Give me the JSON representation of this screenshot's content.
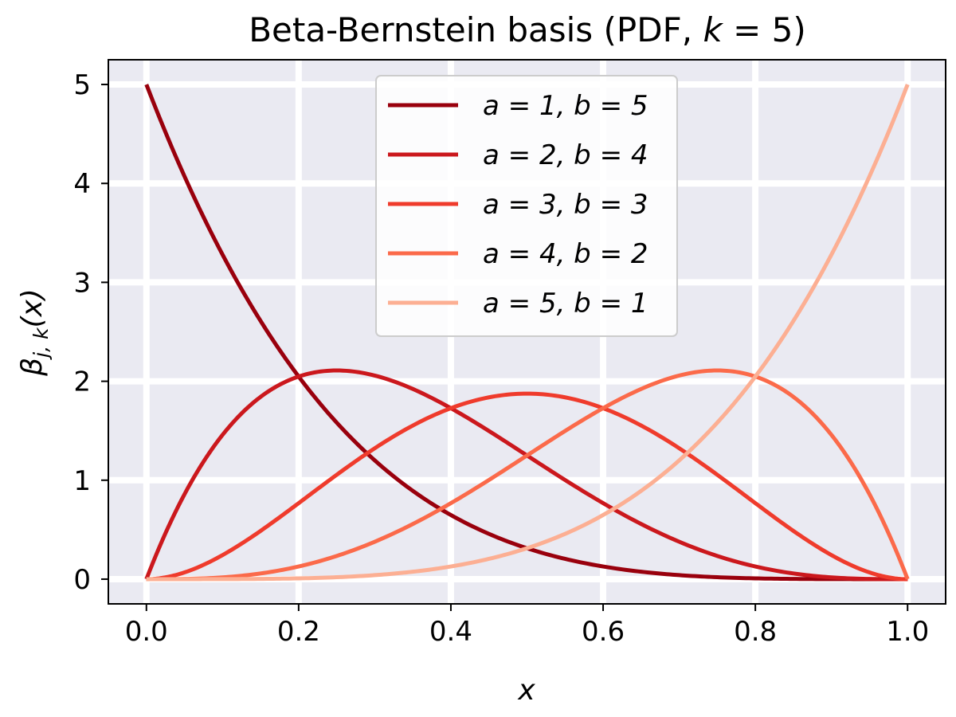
{
  "chart_data": {
    "type": "line",
    "title": "Beta-Bernstein basis (PDF, k = 5)",
    "title_parts": {
      "prefix": "Beta-Bernstein basis (PDF, ",
      "k": "k",
      "eq": " = 5",
      "suffix": ")"
    },
    "xlabel": "x",
    "ylabel_parts": {
      "beta": "β",
      "sub": "j, k",
      "arg": "(x)"
    },
    "xlim": [
      -0.05,
      1.05
    ],
    "ylim": [
      -0.25,
      5.25
    ],
    "xticks": [
      0.0,
      0.2,
      0.4,
      0.6,
      0.8,
      1.0
    ],
    "xtick_labels": [
      "0.0",
      "0.2",
      "0.4",
      "0.6",
      "0.8",
      "1.0"
    ],
    "yticks": [
      0,
      1,
      2,
      3,
      4,
      5
    ],
    "ytick_labels": [
      "0",
      "1",
      "2",
      "3",
      "4",
      "5"
    ],
    "grid": true,
    "legend_position": "top-center",
    "background_color": "#eaeaf2",
    "series": [
      {
        "name": "a = 1, b = 5",
        "a": 1,
        "b": 5,
        "color": "#99000d",
        "x": [
          0,
          0.1,
          0.2,
          0.3,
          0.4,
          0.5,
          0.6,
          0.7,
          0.8,
          0.9,
          1.0
        ],
        "y": [
          5.0,
          3.28,
          2.05,
          1.2,
          0.65,
          0.31,
          0.13,
          0.04,
          0.01,
          0.0,
          0.0
        ]
      },
      {
        "name": "a = 2, b = 4",
        "a": 2,
        "b": 4,
        "color": "#cb181d",
        "x": [
          0,
          0.1,
          0.2,
          0.25,
          0.3,
          0.4,
          0.5,
          0.6,
          0.7,
          0.8,
          0.9,
          1.0
        ],
        "y": [
          0.0,
          1.46,
          2.05,
          2.11,
          2.06,
          1.73,
          1.25,
          0.77,
          0.38,
          0.13,
          0.02,
          0.0
        ]
      },
      {
        "name": "a = 3, b = 3",
        "a": 3,
        "b": 3,
        "color": "#ef3b2c",
        "x": [
          0,
          0.1,
          0.2,
          0.3,
          0.4,
          0.5,
          0.6,
          0.7,
          0.8,
          0.9,
          1.0
        ],
        "y": [
          0.0,
          0.32,
          1.02,
          1.59,
          1.73,
          1.88,
          1.73,
          1.59,
          1.02,
          0.32,
          0.0
        ]
      },
      {
        "name": "a = 4, b = 2",
        "a": 4,
        "b": 2,
        "color": "#fb6a4a",
        "x": [
          0,
          0.1,
          0.2,
          0.3,
          0.4,
          0.5,
          0.6,
          0.7,
          0.75,
          0.8,
          0.9,
          1.0
        ],
        "y": [
          0.0,
          0.02,
          0.13,
          0.38,
          0.77,
          1.25,
          1.73,
          2.06,
          2.11,
          2.05,
          1.46,
          0.0
        ]
      },
      {
        "name": "a = 5, b = 1",
        "a": 5,
        "b": 1,
        "color": "#fcaf93",
        "x": [
          0,
          0.1,
          0.2,
          0.3,
          0.4,
          0.5,
          0.6,
          0.7,
          0.8,
          0.9,
          1.0
        ],
        "y": [
          0.0,
          0.0,
          0.01,
          0.04,
          0.13,
          0.31,
          0.65,
          1.2,
          2.05,
          3.28,
          5.0
        ]
      }
    ]
  }
}
